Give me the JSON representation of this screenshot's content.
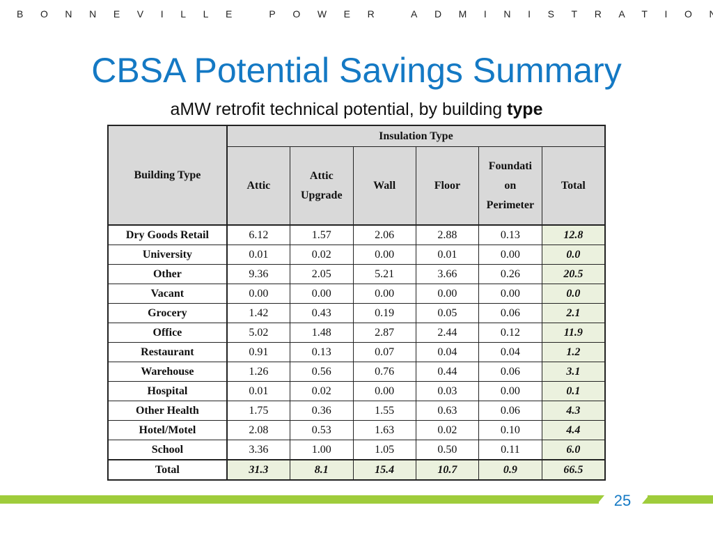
{
  "header": {
    "org": "BONNEVILLE POWER ADMINISTRATION"
  },
  "title": "CBSA Potential Savings Summary",
  "subtitle": {
    "prefix": "aMW retrofit technical potential, by building ",
    "bold": "type"
  },
  "table": {
    "row_header": "Building Type",
    "group_header": "Insulation Type",
    "columns": [
      "Attic",
      "Attic Upgrade",
      "Wall",
      "Floor",
      "Foundation Perimeter",
      "Total"
    ],
    "columns_display": [
      "Attic",
      "Attic\nUpgrade",
      "Wall",
      "Floor",
      "Foundati\non\nPerimeter",
      "Total"
    ],
    "rows": [
      {
        "name": "Dry Goods Retail",
        "values": [
          "6.12",
          "1.57",
          "2.06",
          "2.88",
          "0.13"
        ],
        "total": "12.8"
      },
      {
        "name": "University",
        "values": [
          "0.01",
          "0.02",
          "0.00",
          "0.01",
          "0.00"
        ],
        "total": "0.0"
      },
      {
        "name": "Other",
        "values": [
          "9.36",
          "2.05",
          "5.21",
          "3.66",
          "0.26"
        ],
        "total": "20.5"
      },
      {
        "name": "Vacant",
        "values": [
          "0.00",
          "0.00",
          "0.00",
          "0.00",
          "0.00"
        ],
        "total": "0.0"
      },
      {
        "name": "Grocery",
        "values": [
          "1.42",
          "0.43",
          "0.19",
          "0.05",
          "0.06"
        ],
        "total": "2.1"
      },
      {
        "name": "Office",
        "values": [
          "5.02",
          "1.48",
          "2.87",
          "2.44",
          "0.12"
        ],
        "total": "11.9"
      },
      {
        "name": "Restaurant",
        "values": [
          "0.91",
          "0.13",
          "0.07",
          "0.04",
          "0.04"
        ],
        "total": "1.2"
      },
      {
        "name": "Warehouse",
        "values": [
          "1.26",
          "0.56",
          "0.76",
          "0.44",
          "0.06"
        ],
        "total": "3.1"
      },
      {
        "name": "Hospital",
        "values": [
          "0.01",
          "0.02",
          "0.00",
          "0.03",
          "0.00"
        ],
        "total": "0.1"
      },
      {
        "name": "Other Health",
        "values": [
          "1.75",
          "0.36",
          "1.55",
          "0.63",
          "0.06"
        ],
        "total": "4.3"
      },
      {
        "name": "Hotel/Motel",
        "values": [
          "2.08",
          "0.53",
          "1.63",
          "0.02",
          "0.10"
        ],
        "total": "4.4"
      },
      {
        "name": "School",
        "values": [
          "3.36",
          "1.00",
          "1.05",
          "0.50",
          "0.11"
        ],
        "total": "6.0"
      }
    ],
    "total_row": {
      "name": "Total",
      "values": [
        "31.3",
        "8.1",
        "15.4",
        "10.7",
        "0.9"
      ],
      "total": "66.5"
    }
  },
  "page_number": "25",
  "colors": {
    "title": "#1479c4",
    "header_fill": "#d9d9d9",
    "total_fill": "#ebf1de",
    "footer_bar": "#9fcc3b"
  }
}
